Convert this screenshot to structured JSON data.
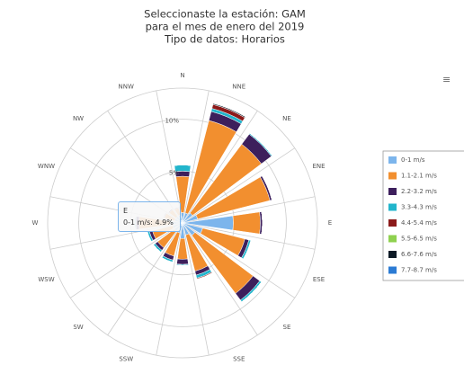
{
  "chart_data": {
    "type": "windrose",
    "title": [
      "Seleccionaste la estación: GAM",
      "para el mes de enero del 2019",
      "Tipo de datos: Horarios"
    ],
    "categories": [
      "N",
      "NNE",
      "NE",
      "ENE",
      "E",
      "ESE",
      "SE",
      "SSE",
      "S",
      "SSW",
      "SW",
      "WSW",
      "W",
      "WNW",
      "NW",
      "NNW"
    ],
    "ylim": [
      0,
      13
    ],
    "yticks": [
      {
        "value": 5,
        "label": "5%"
      },
      {
        "value": 10,
        "label": "10%"
      }
    ],
    "grid": true,
    "legend": "right",
    "series": [
      {
        "name": "0-1 m/s",
        "color": "#7cb5ec",
        "values": [
          1.0,
          1.0,
          1.2,
          1.5,
          4.9,
          2.0,
          1.5,
          1.2,
          1.5,
          1.0,
          1.0,
          1.0,
          1.2,
          0.8,
          0.8,
          0.8
        ]
      },
      {
        "name": "1.1-2.1 m/s",
        "color": "#f28f2f",
        "values": [
          3.5,
          9.2,
          8.3,
          7.2,
          2.6,
          4.2,
          7.0,
          3.6,
          2.0,
          2.3,
          2.0,
          2.0,
          3.0,
          1.0,
          0.8,
          0.7
        ]
      },
      {
        "name": "2.2-3.2 m/s",
        "color": "#3d1f5c",
        "values": [
          0.5,
          0.9,
          1.2,
          0.2,
          0.2,
          0.4,
          0.8,
          0.4,
          0.5,
          0.4,
          0.3,
          0.3,
          0.3,
          0.1,
          0.1,
          0.1
        ]
      },
      {
        "name": "3.3-4.3 m/s",
        "color": "#22b5cc",
        "values": [
          0.6,
          0.3,
          0.1,
          0,
          0,
          0.2,
          0.2,
          0.3,
          0.1,
          0.2,
          0.2,
          0.2,
          0.1,
          0,
          0,
          0
        ]
      },
      {
        "name": "4.4-5.4 m/s",
        "color": "#8b1a1a",
        "values": [
          0,
          0.4,
          0,
          0,
          0,
          0,
          0,
          0.1,
          0,
          0,
          0,
          0,
          0,
          0,
          0,
          0
        ]
      },
      {
        "name": "5.5-6.5 m/s",
        "color": "#8fd14f",
        "values": [
          0,
          0,
          0,
          0,
          0,
          0,
          0,
          0,
          0,
          0,
          0,
          0,
          0,
          0,
          0,
          0
        ]
      },
      {
        "name": "6.6-7.6 m/s",
        "color": "#0d1a26",
        "values": [
          0,
          0.1,
          0,
          0,
          0,
          0,
          0,
          0,
          0,
          0,
          0,
          0,
          0,
          0,
          0,
          0
        ]
      },
      {
        "name": "7.7-8.7 m/s",
        "color": "#2b7bd4",
        "values": [
          0,
          0,
          0,
          0,
          0,
          0,
          0,
          0,
          0,
          0,
          0,
          0,
          0,
          0,
          0,
          0
        ]
      }
    ],
    "tooltip": {
      "title": "E",
      "text": "0-1 m/s: 4.9%"
    }
  }
}
